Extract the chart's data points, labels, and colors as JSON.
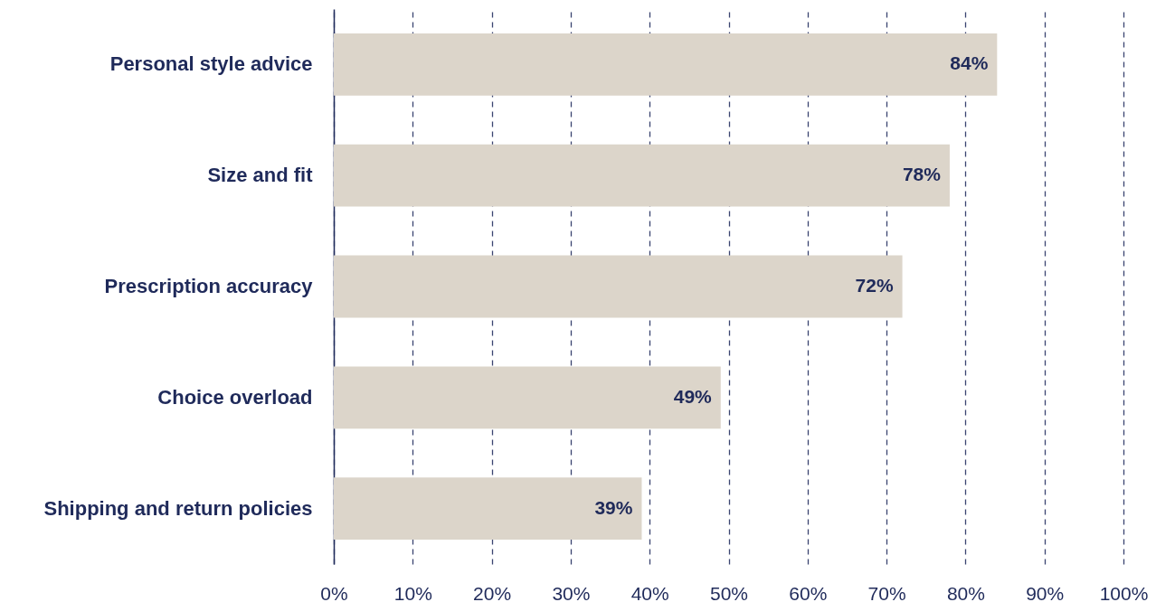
{
  "chart_data": {
    "type": "bar",
    "orientation": "horizontal",
    "categories": [
      "Personal style advice",
      "Size and fit",
      "Prescription accuracy",
      "Choice overload",
      "Shipping and return policies"
    ],
    "values": [
      84,
      78,
      72,
      49,
      39
    ],
    "value_labels": [
      "84%",
      "78%",
      "72%",
      "49%",
      "39%"
    ],
    "color": "#dcd5ca",
    "xlim": [
      0,
      100
    ],
    "xticks": [
      {
        "value": 0,
        "label": "0%"
      },
      {
        "value": 10,
        "label": "10%"
      },
      {
        "value": 20,
        "label": "20%"
      },
      {
        "value": 30,
        "label": "30%"
      },
      {
        "value": 40,
        "label": "40%"
      },
      {
        "value": 50,
        "label": "50%"
      },
      {
        "value": 60,
        "label": "60%"
      },
      {
        "value": 70,
        "label": "70%"
      },
      {
        "value": 80,
        "label": "80%"
      },
      {
        "value": 90,
        "label": "90%"
      },
      {
        "value": 100,
        "label": "100%"
      }
    ],
    "grid": "x"
  }
}
